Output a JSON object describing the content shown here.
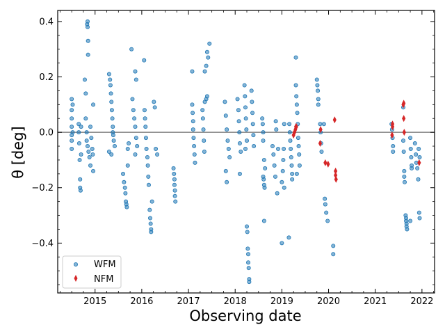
{
  "chart_data": {
    "type": "scatter",
    "title": "",
    "xlabel": "Observing date",
    "ylabel": "θ [deg]",
    "xlim": [
      2014.2,
      2022.27
    ],
    "ylim": [
      -0.58,
      0.44
    ],
    "x_ticks": [
      2015,
      2016,
      2017,
      2018,
      2019,
      2020,
      2021,
      2022
    ],
    "y_ticks": [
      0.4,
      0.2,
      0.0,
      -0.2,
      -0.4
    ],
    "y_tick_labels": [
      "0.4",
      "0.2",
      "0.0",
      "−0.2",
      "−0.4"
    ],
    "reference_line": 0.0,
    "legend": {
      "position": "lower-left",
      "entries": [
        "WFM",
        "NFM"
      ]
    },
    "series": [
      {
        "name": "WFM",
        "marker": "circle",
        "color": "#1f77b4",
        "points": [
          [
            2014.5,
            0.12
          ],
          [
            2014.5,
            0.08
          ],
          [
            2014.5,
            0.05
          ],
          [
            2014.5,
            0.02
          ],
          [
            2014.5,
            -0.01
          ],
          [
            2014.5,
            -0.03
          ],
          [
            2014.5,
            -0.06
          ],
          [
            2014.52,
            0.1
          ],
          [
            2014.52,
            0.0
          ],
          [
            2014.65,
            0.03
          ],
          [
            2014.65,
            0.0
          ],
          [
            2014.66,
            -0.04
          ],
          [
            2014.67,
            -0.1
          ],
          [
            2014.68,
            -0.17
          ],
          [
            2014.68,
            -0.2
          ],
          [
            2014.69,
            -0.21
          ],
          [
            2014.7,
            0.02
          ],
          [
            2014.7,
            -0.08
          ],
          [
            2014.78,
            0.19
          ],
          [
            2014.8,
            0.14
          ],
          [
            2014.83,
            0.39
          ],
          [
            2014.84,
            0.38
          ],
          [
            2014.84,
            0.4
          ],
          [
            2014.85,
            0.33
          ],
          [
            2014.85,
            0.28
          ],
          [
            2014.8,
            0.05
          ],
          [
            2014.82,
            0.0
          ],
          [
            2014.84,
            -0.05
          ],
          [
            2014.86,
            -0.07
          ],
          [
            2014.88,
            -0.09
          ],
          [
            2014.9,
            -0.12
          ],
          [
            2014.92,
            -0.02
          ],
          [
            2014.94,
            -0.06
          ],
          [
            2014.96,
            0.1
          ],
          [
            2014.96,
            -0.14
          ],
          [
            2014.82,
            -0.03
          ],
          [
            2014.9,
            0.02
          ],
          [
            2014.95,
            -0.08
          ],
          [
            2015.3,
            0.21
          ],
          [
            2015.32,
            0.19
          ],
          [
            2015.33,
            0.17
          ],
          [
            2015.34,
            0.14
          ],
          [
            2015.35,
            0.11
          ],
          [
            2015.36,
            0.08
          ],
          [
            2015.37,
            0.05
          ],
          [
            2015.38,
            0.02
          ],
          [
            2015.39,
            -0.01
          ],
          [
            2015.4,
            -0.03
          ],
          [
            2015.42,
            -0.05
          ],
          [
            2015.3,
            -0.07
          ],
          [
            2015.35,
            -0.08
          ],
          [
            2015.38,
            0.0
          ],
          [
            2015.6,
            -0.15
          ],
          [
            2015.62,
            -0.18
          ],
          [
            2015.64,
            -0.2
          ],
          [
            2015.65,
            -0.22
          ],
          [
            2015.66,
            -0.25
          ],
          [
            2015.67,
            -0.26
          ],
          [
            2015.68,
            -0.27
          ],
          [
            2015.7,
            -0.12
          ],
          [
            2015.7,
            -0.06
          ],
          [
            2015.72,
            -0.04
          ],
          [
            2015.78,
            0.3
          ],
          [
            2015.82,
            0.08
          ],
          [
            2015.84,
            0.05
          ],
          [
            2015.86,
            0.02
          ],
          [
            2015.88,
            -0.02
          ],
          [
            2015.9,
            -0.05
          ],
          [
            2015.86,
            0.22
          ],
          [
            2015.88,
            0.19
          ],
          [
            2015.86,
            -0.08
          ],
          [
            2015.8,
            0.12
          ],
          [
            2016.05,
            0.26
          ],
          [
            2016.06,
            0.08
          ],
          [
            2016.07,
            0.05
          ],
          [
            2016.08,
            0.02
          ],
          [
            2016.09,
            -0.02
          ],
          [
            2016.1,
            -0.06
          ],
          [
            2016.12,
            -0.09
          ],
          [
            2016.13,
            -0.12
          ],
          [
            2016.14,
            -0.16
          ],
          [
            2016.15,
            -0.19
          ],
          [
            2016.17,
            -0.28
          ],
          [
            2016.18,
            -0.31
          ],
          [
            2016.19,
            -0.33
          ],
          [
            2016.2,
            -0.35
          ],
          [
            2016.2,
            -0.36
          ],
          [
            2016.26,
            0.11
          ],
          [
            2016.28,
            0.09
          ],
          [
            2016.3,
            -0.06
          ],
          [
            2016.33,
            -0.08
          ],
          [
            2016.22,
            -0.25
          ],
          [
            2016.68,
            -0.13
          ],
          [
            2016.69,
            -0.15
          ],
          [
            2016.7,
            -0.17
          ],
          [
            2016.7,
            -0.19
          ],
          [
            2016.71,
            -0.21
          ],
          [
            2016.71,
            -0.23
          ],
          [
            2016.72,
            -0.25
          ],
          [
            2017.08,
            0.22
          ],
          [
            2017.08,
            0.1
          ],
          [
            2017.09,
            0.07
          ],
          [
            2017.1,
            0.04
          ],
          [
            2017.1,
            0.01
          ],
          [
            2017.11,
            -0.02
          ],
          [
            2017.12,
            -0.05
          ],
          [
            2017.13,
            -0.08
          ],
          [
            2017.14,
            -0.11
          ],
          [
            2017.3,
            0.08
          ],
          [
            2017.31,
            0.05
          ],
          [
            2017.32,
            0.01
          ],
          [
            2017.33,
            -0.03
          ],
          [
            2017.34,
            -0.07
          ],
          [
            2017.35,
            0.11
          ],
          [
            2017.4,
            0.29
          ],
          [
            2017.42,
            0.27
          ],
          [
            2017.45,
            0.32
          ],
          [
            2017.35,
            0.22
          ],
          [
            2017.38,
            0.24
          ],
          [
            2017.4,
            0.13
          ],
          [
            2017.38,
            0.12
          ],
          [
            2017.78,
            0.11
          ],
          [
            2017.8,
            0.06
          ],
          [
            2017.82,
            0.01
          ],
          [
            2017.84,
            -0.03
          ],
          [
            2017.86,
            -0.06
          ],
          [
            2017.88,
            -0.09
          ],
          [
            2017.8,
            -0.14
          ],
          [
            2017.82,
            -0.18
          ],
          [
            2018.05,
            0.12
          ],
          [
            2018.07,
            0.08
          ],
          [
            2018.08,
            0.04
          ],
          [
            2018.09,
            0.0
          ],
          [
            2018.1,
            -0.04
          ],
          [
            2018.12,
            -0.07
          ],
          [
            2018.1,
            -0.15
          ],
          [
            2018.2,
            0.17
          ],
          [
            2018.21,
            0.13
          ],
          [
            2018.22,
            0.09
          ],
          [
            2018.23,
            0.05
          ],
          [
            2018.24,
            0.01
          ],
          [
            2018.25,
            -0.03
          ],
          [
            2018.22,
            -0.06
          ],
          [
            2018.25,
            -0.34
          ],
          [
            2018.26,
            -0.36
          ],
          [
            2018.27,
            -0.42
          ],
          [
            2018.28,
            -0.44
          ],
          [
            2018.28,
            -0.47
          ],
          [
            2018.29,
            -0.49
          ],
          [
            2018.3,
            -0.53
          ],
          [
            2018.3,
            -0.54
          ],
          [
            2018.35,
            0.15
          ],
          [
            2018.36,
            0.11
          ],
          [
            2018.37,
            0.07
          ],
          [
            2018.38,
            0.03
          ],
          [
            2018.39,
            -0.01
          ],
          [
            2018.4,
            -0.05
          ],
          [
            2018.58,
            0.05
          ],
          [
            2018.59,
            0.03
          ],
          [
            2018.6,
            0.0
          ],
          [
            2018.6,
            -0.03
          ],
          [
            2018.6,
            -0.16
          ],
          [
            2018.61,
            -0.17
          ],
          [
            2018.62,
            -0.19
          ],
          [
            2018.63,
            -0.2
          ],
          [
            2018.62,
            -0.32
          ],
          [
            2018.62,
            -0.1
          ],
          [
            2018.64,
            -0.13
          ],
          [
            2018.8,
            -0.05
          ],
          [
            2018.82,
            -0.08
          ],
          [
            2018.84,
            -0.12
          ],
          [
            2018.86,
            -0.16
          ],
          [
            2018.87,
            0.04
          ],
          [
            2018.88,
            0.01
          ],
          [
            2018.9,
            -0.22
          ],
          [
            2018.92,
            -0.06
          ],
          [
            2019.0,
            -0.4
          ],
          [
            2019.0,
            -0.18
          ],
          [
            2019.02,
            -0.14
          ],
          [
            2019.03,
            -0.1
          ],
          [
            2019.04,
            -0.06
          ],
          [
            2019.05,
            0.03
          ],
          [
            2019.05,
            -0.2
          ],
          [
            2019.15,
            -0.38
          ],
          [
            2019.16,
            0.03
          ],
          [
            2019.17,
            0.0
          ],
          [
            2019.18,
            -0.03
          ],
          [
            2019.19,
            -0.06
          ],
          [
            2019.2,
            -0.09
          ],
          [
            2019.21,
            -0.12
          ],
          [
            2019.22,
            -0.15
          ],
          [
            2019.22,
            -0.17
          ],
          [
            2019.3,
            0.27
          ],
          [
            2019.3,
            0.17
          ],
          [
            2019.31,
            0.13
          ],
          [
            2019.32,
            0.1
          ],
          [
            2019.33,
            0.07
          ],
          [
            2019.34,
            0.03
          ],
          [
            2019.35,
            -0.02
          ],
          [
            2019.36,
            -0.05
          ],
          [
            2019.37,
            -0.08
          ],
          [
            2019.38,
            -0.12
          ],
          [
            2019.32,
            -0.15
          ],
          [
            2019.75,
            0.19
          ],
          [
            2019.76,
            0.17
          ],
          [
            2019.77,
            0.15
          ],
          [
            2019.78,
            0.12
          ],
          [
            2019.78,
            0.1
          ],
          [
            2019.82,
            0.03
          ],
          [
            2019.83,
            0.0
          ],
          [
            2019.84,
            -0.04
          ],
          [
            2019.85,
            -0.07
          ],
          [
            2019.92,
            -0.24
          ],
          [
            2019.93,
            -0.26
          ],
          [
            2019.95,
            -0.29
          ],
          [
            2019.98,
            -0.32
          ],
          [
            2020.1,
            -0.41
          ],
          [
            2020.1,
            -0.44
          ],
          [
            2019.9,
            0.03
          ],
          [
            2021.35,
            0.03
          ],
          [
            2021.36,
            0.01
          ],
          [
            2021.37,
            -0.02
          ],
          [
            2021.38,
            -0.05
          ],
          [
            2021.38,
            -0.07
          ],
          [
            2021.6,
            0.09
          ],
          [
            2021.6,
            -0.03
          ],
          [
            2021.61,
            -0.07
          ],
          [
            2021.62,
            -0.14
          ],
          [
            2021.62,
            -0.16
          ],
          [
            2021.63,
            -0.18
          ],
          [
            2021.65,
            -0.3
          ],
          [
            2021.66,
            -0.31
          ],
          [
            2021.66,
            -0.32
          ],
          [
            2021.67,
            -0.33
          ],
          [
            2021.67,
            -0.34
          ],
          [
            2021.68,
            -0.35
          ],
          [
            2021.75,
            -0.02
          ],
          [
            2021.76,
            -0.06
          ],
          [
            2021.77,
            -0.09
          ],
          [
            2021.78,
            -0.12
          ],
          [
            2021.78,
            -0.13
          ],
          [
            2021.75,
            -0.32
          ],
          [
            2021.85,
            -0.04
          ],
          [
            2021.87,
            -0.08
          ],
          [
            2021.88,
            -0.11
          ],
          [
            2021.9,
            -0.13
          ],
          [
            2021.92,
            -0.17
          ],
          [
            2021.94,
            -0.29
          ],
          [
            2021.95,
            -0.31
          ],
          [
            2021.95,
            -0.09
          ],
          [
            2021.93,
            -0.06
          ]
        ]
      },
      {
        "name": "NFM",
        "marker": "diamond",
        "color": "#d62728",
        "points": [
          [
            2019.25,
            -0.01
          ],
          [
            2019.27,
            0.0
          ],
          [
            2019.29,
            0.01
          ],
          [
            2019.3,
            0.02
          ],
          [
            2019.31,
            0.02
          ],
          [
            2019.82,
            -0.04
          ],
          [
            2019.83,
            0.01
          ],
          [
            2019.93,
            -0.11
          ],
          [
            2019.99,
            -0.115
          ],
          [
            2020.13,
            0.045
          ],
          [
            2020.15,
            -0.14
          ],
          [
            2020.15,
            -0.155
          ],
          [
            2020.16,
            -0.17
          ],
          [
            2021.36,
            -0.01
          ],
          [
            2021.37,
            0.02
          ],
          [
            2021.37,
            0.03
          ],
          [
            2021.6,
            0.1
          ],
          [
            2021.61,
            0.105
          ],
          [
            2021.61,
            0.05
          ],
          [
            2021.62,
            0.0
          ],
          [
            2021.94,
            -0.11
          ]
        ]
      }
    ]
  }
}
